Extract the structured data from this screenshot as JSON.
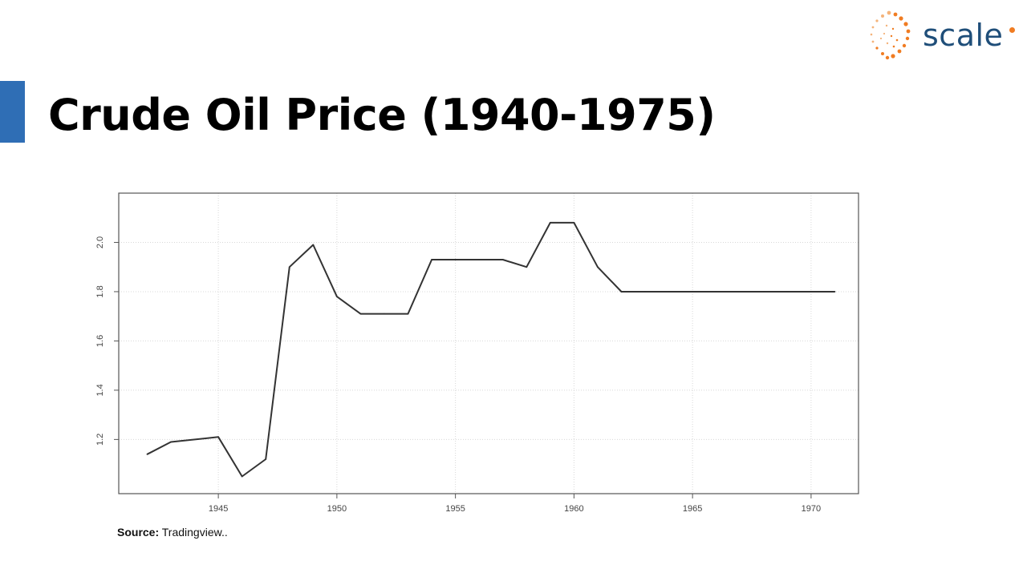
{
  "slide": {
    "title": "Crude Oil Price (1940-1975)",
    "accent_color": "#2f6eb5"
  },
  "logo": {
    "text": "scale",
    "text_color": "#1f4e79",
    "accent_color": "#f07c22"
  },
  "source": {
    "label": "Source:",
    "text": "Tradingview.."
  },
  "chart_data": {
    "type": "line",
    "title": "",
    "xlabel": "",
    "ylabel": "",
    "xlim": [
      1940.8,
      1972
    ],
    "ylim": [
      0.98,
      2.2
    ],
    "xticks": [
      "1945",
      "1950",
      "1955",
      "1960",
      "1965",
      "1970"
    ],
    "yticks": [
      "1.2",
      "1.4",
      "1.6",
      "1.8",
      "2.0"
    ],
    "grid": true,
    "series": [
      {
        "x": [
          1942,
          1943,
          1945,
          1946,
          1947,
          1948,
          1949,
          1950,
          1951,
          1952,
          1953,
          1954,
          1955,
          1956,
          1957,
          1958,
          1959,
          1960,
          1961,
          1962,
          1963,
          1964,
          1965,
          1966,
          1967,
          1968,
          1969,
          1970,
          1971
        ],
        "values": [
          1.14,
          1.19,
          1.21,
          1.05,
          1.12,
          1.9,
          1.99,
          1.78,
          1.71,
          1.71,
          1.71,
          1.93,
          1.93,
          1.93,
          1.93,
          1.9,
          2.08,
          2.08,
          1.9,
          1.8,
          1.8,
          1.8,
          1.8,
          1.8,
          1.8,
          1.8,
          1.8,
          1.8,
          1.8
        ],
        "color": "#333333"
      }
    ]
  }
}
